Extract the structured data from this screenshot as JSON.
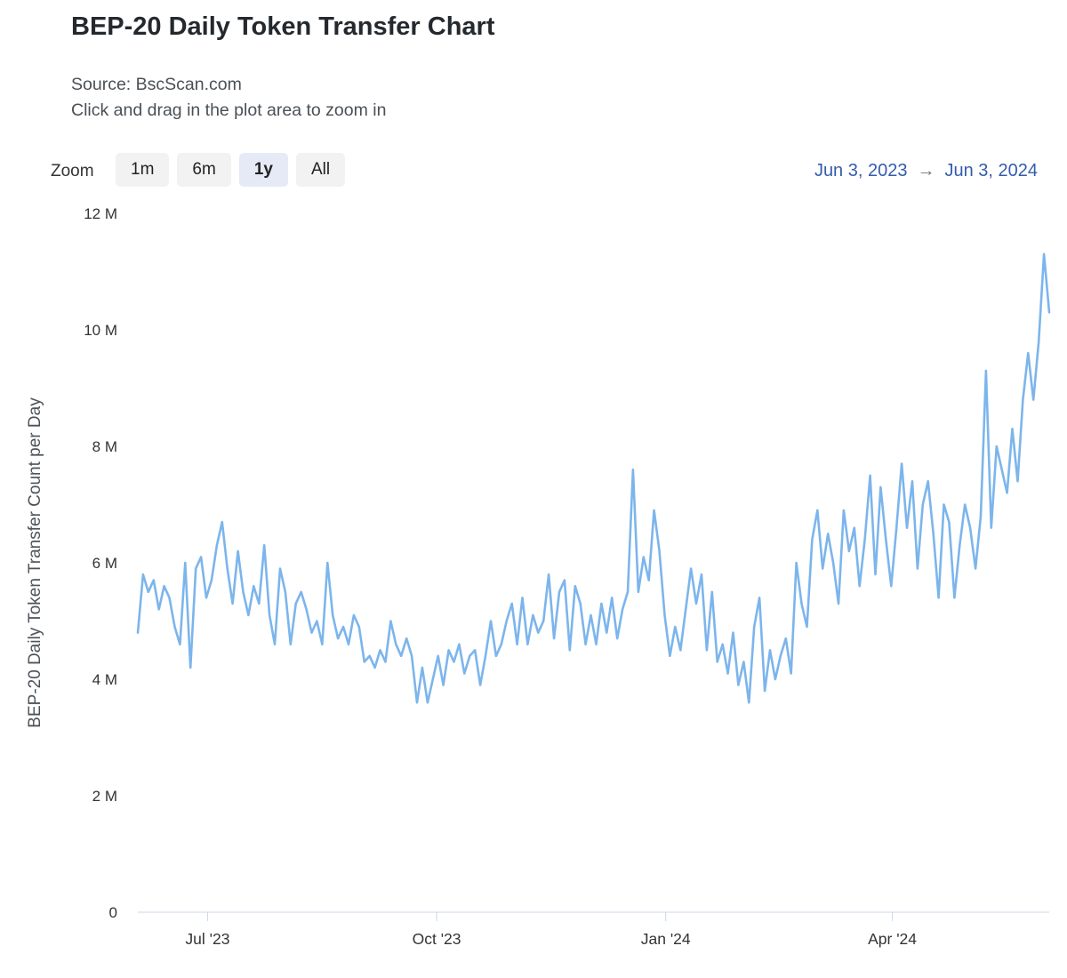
{
  "header": {
    "title": "BEP-20 Daily Token Transfer Chart",
    "subtitle_source": "Source: BscScan.com",
    "subtitle_hint": "Click and drag in the plot area to zoom in"
  },
  "toolbar": {
    "zoom_label": "Zoom",
    "buttons": [
      {
        "label": "1m",
        "active": false
      },
      {
        "label": "6m",
        "active": false
      },
      {
        "label": "1y",
        "active": true
      },
      {
        "label": "All",
        "active": false
      }
    ],
    "range": {
      "from": "Jun 3, 2023",
      "arrow": "→",
      "to": "Jun 3, 2024"
    }
  },
  "colors": {
    "line": "#7cb5ec",
    "link": "#335cad",
    "axis_line": "#ccd6eb",
    "button_bg": "#f2f2f2",
    "button_active_bg": "#e6eaf7"
  },
  "chart_data": {
    "type": "line",
    "title": "BEP-20 Daily Token Transfer Chart",
    "xlabel": "",
    "ylabel": "BEP-20 Daily Token Transfer Count per Day",
    "y_unit": "M",
    "ylim": [
      0,
      12
    ],
    "grid": false,
    "legend": "none",
    "x_range_days": 366,
    "x_start": "Jun 3, 2023",
    "x_end": "Jun 3, 2024",
    "x_ticks": [
      {
        "label": "Jul '23",
        "day": 28
      },
      {
        "label": "Oct '23",
        "day": 120
      },
      {
        "label": "Jan '24",
        "day": 212
      },
      {
        "label": "Apr '24",
        "day": 303
      }
    ],
    "y_ticks": [
      {
        "value": 0,
        "label": "0"
      },
      {
        "value": 2,
        "label": "2 M"
      },
      {
        "value": 4,
        "label": "4 M"
      },
      {
        "value": 6,
        "label": "6 M"
      },
      {
        "value": 8,
        "label": "8 M"
      },
      {
        "value": 10,
        "label": "10 M"
      },
      {
        "value": 12,
        "label": "12 M"
      }
    ],
    "series": [
      {
        "name": "BEP-20 Daily Token Transfer Count per Day",
        "color": "#7cb5ec",
        "unit": "M",
        "values": [
          4.8,
          5.8,
          5.5,
          5.7,
          5.2,
          5.6,
          5.4,
          4.9,
          4.6,
          6.0,
          4.2,
          5.9,
          6.1,
          5.4,
          5.7,
          6.3,
          6.7,
          5.9,
          5.3,
          6.2,
          5.5,
          5.1,
          5.6,
          5.3,
          6.3,
          5.1,
          4.6,
          5.9,
          5.5,
          4.6,
          5.3,
          5.5,
          5.2,
          4.8,
          5.0,
          4.6,
          6.0,
          5.1,
          4.7,
          4.9,
          4.6,
          5.1,
          4.9,
          4.3,
          4.4,
          4.2,
          4.5,
          4.3,
          5.0,
          4.6,
          4.4,
          4.7,
          4.4,
          3.6,
          4.2,
          3.6,
          4.0,
          4.4,
          3.9,
          4.5,
          4.3,
          4.6,
          4.1,
          4.4,
          4.5,
          3.9,
          4.4,
          5.0,
          4.4,
          4.6,
          5.0,
          5.3,
          4.6,
          5.4,
          4.6,
          5.1,
          4.8,
          5.0,
          5.8,
          4.7,
          5.5,
          5.7,
          4.5,
          5.6,
          5.3,
          4.6,
          5.1,
          4.6,
          5.3,
          4.8,
          5.4,
          4.7,
          5.2,
          5.5,
          7.6,
          5.5,
          6.1,
          5.7,
          6.9,
          6.2,
          5.1,
          4.4,
          4.9,
          4.5,
          5.2,
          5.9,
          5.3,
          5.8,
          4.5,
          5.5,
          4.3,
          4.6,
          4.1,
          4.8,
          3.9,
          4.3,
          3.6,
          4.9,
          5.4,
          3.8,
          4.5,
          4.0,
          4.4,
          4.7,
          4.1,
          6.0,
          5.3,
          4.9,
          6.4,
          6.9,
          5.9,
          6.5,
          6.0,
          5.3,
          6.9,
          6.2,
          6.6,
          5.6,
          6.4,
          7.5,
          5.8,
          7.3,
          6.4,
          5.6,
          6.6,
          7.7,
          6.6,
          7.4,
          5.9,
          7.0,
          7.4,
          6.5,
          5.4,
          7.0,
          6.7,
          5.4,
          6.3,
          7.0,
          6.6,
          5.9,
          6.8,
          9.3,
          6.6,
          8.0,
          7.6,
          7.2,
          8.3,
          7.4,
          8.8,
          9.6,
          8.8,
          9.8,
          11.3,
          10.3
        ]
      }
    ]
  }
}
